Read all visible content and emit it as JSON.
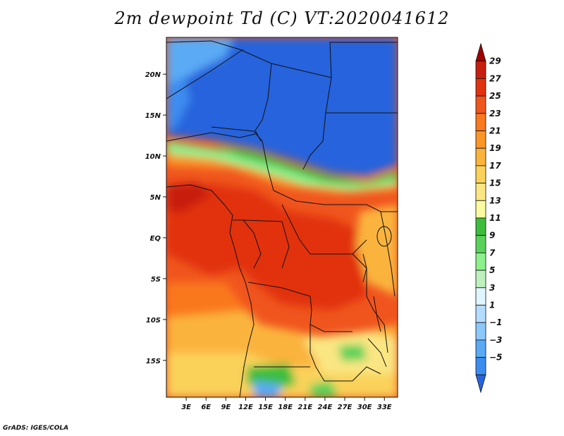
{
  "title": "2m dewpoint Td (C) VT:2020041612",
  "credit": "GrADS: IGES/COLA",
  "map": {
    "lat_ticks": [
      "20N",
      "15N",
      "10N",
      "5N",
      "EQ",
      "5S",
      "10S",
      "15S"
    ],
    "lon_ticks": [
      "3E",
      "6E",
      "9E",
      "12E",
      "15E",
      "18E",
      "21E",
      "24E",
      "27E",
      "30E",
      "33E"
    ],
    "lat_range": [
      -19.5,
      24.5
    ],
    "lon_range": [
      0,
      35
    ]
  },
  "colorbar": {
    "labels": [
      "29",
      "27",
      "25",
      "23",
      "21",
      "19",
      "17",
      "15",
      "13",
      "11",
      "9",
      "7",
      "5",
      "3",
      "1",
      "−1",
      "−3",
      "−5"
    ],
    "colors": [
      "#a00000",
      "#c81e0f",
      "#e1320f",
      "#f0551e",
      "#fa781e",
      "#fa9628",
      "#fab43c",
      "#fad25a",
      "#fae682",
      "#fafaa0",
      "#3cbe3c",
      "#5ad25a",
      "#8cf08c",
      "#bef0be",
      "#e1f5ff",
      "#b4dcff",
      "#8cc8fa",
      "#5aaaf5",
      "#3c8cf0",
      "#2864dc"
    ],
    "units": "C"
  }
}
